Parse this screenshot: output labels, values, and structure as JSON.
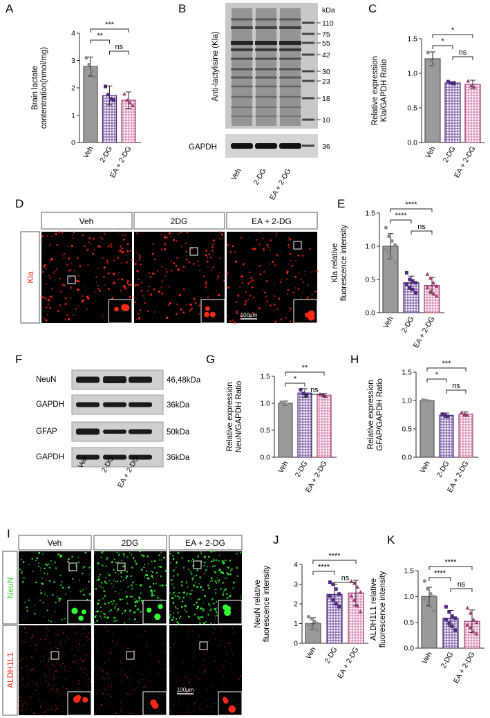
{
  "colors": {
    "veh": "#9a9a9a",
    "dg": "#7b5ea7",
    "ea": "#d88bb0",
    "dg_dark": "#4b2a7b",
    "ea_dark": "#9c3b6e",
    "fluor_red": "#ff2a1a",
    "fluor_green": "#33ff33"
  },
  "panels": {
    "A": {
      "label": "A"
    },
    "B": {
      "label": "B"
    },
    "C": {
      "label": "C"
    },
    "D": {
      "label": "D"
    },
    "E": {
      "label": "E"
    },
    "F": {
      "label": "F"
    },
    "G": {
      "label": "G"
    },
    "H": {
      "label": "H"
    },
    "I": {
      "label": "I"
    },
    "J": {
      "label": "J"
    },
    "K": {
      "label": "K"
    }
  },
  "blot_B": {
    "ylabel": "Anti-lactylisine (Kla)",
    "kda_header": "kDa",
    "markers": [
      "110",
      "75",
      "55",
      "42",
      "30",
      "23",
      "18",
      "10"
    ],
    "gapdh_label": "GAPDH",
    "gapdh_marker": "36",
    "lanes": [
      "Veh",
      "2-DG",
      "EA + 2-DG"
    ]
  },
  "panel_D": {
    "headers": [
      "Veh",
      "2DG",
      "EA + 2-DG"
    ],
    "row_label": "Kla",
    "scale_bar": "100μm"
  },
  "blot_F": {
    "blocks": [
      {
        "name": "NeuN",
        "size": "46,48kDa"
      },
      {
        "name": "GAPDH",
        "size": "36kDa"
      },
      {
        "name": "GFAP",
        "size": "50kDa"
      },
      {
        "name": "GAPDH",
        "size": "36kDa"
      }
    ],
    "lanes": [
      "Veh",
      "2-DG",
      "EA + 2-DG"
    ]
  },
  "panel_I": {
    "headers": [
      "Veh",
      "2DG",
      "EA + 2-DG"
    ],
    "row_labels": [
      "NeuN",
      "ALDH1L1"
    ],
    "scale_bar": "100μm"
  },
  "chart_data": [
    {
      "panel": "A",
      "type": "bar",
      "categories": [
        "Veh",
        "2-DG",
        "EA + 2-DG"
      ],
      "values": [
        2.78,
        1.72,
        1.55
      ],
      "errors": [
        0.35,
        0.35,
        0.3
      ],
      "points": [
        [
          3.1,
          2.85,
          2.6,
          2.4
        ],
        [
          2.05,
          1.75,
          1.6,
          1.55
        ],
        [
          1.78,
          1.55,
          1.45,
          1.35
        ]
      ],
      "ylabel": "Brain lactate contentration(nmol/mg)",
      "ylim": [
        0,
        4
      ],
      "yticks": [
        0,
        1,
        2,
        3,
        4
      ],
      "significance": [
        {
          "a": 0,
          "b": 2,
          "text": "***"
        },
        {
          "a": 0,
          "b": 1,
          "text": "**"
        },
        {
          "a": 1,
          "b": 2,
          "text": "ns"
        }
      ]
    },
    {
      "panel": "C",
      "type": "bar",
      "categories": [
        "Veh",
        "2-DG",
        "EA + 2-DG"
      ],
      "values": [
        1.21,
        0.86,
        0.84
      ],
      "errors": [
        0.1,
        0.02,
        0.06
      ],
      "points": [
        [
          1.3,
          1.18,
          1.13
        ],
        [
          0.88,
          0.86,
          0.85
        ],
        [
          0.89,
          0.82,
          0.8
        ]
      ],
      "ylabel": "Relative expression Kla/GAPDH Ratio",
      "ylim": [
        0,
        1.5
      ],
      "yticks": [
        0.0,
        0.5,
        1.0,
        1.5
      ],
      "significance": [
        {
          "a": 0,
          "b": 2,
          "text": "*"
        },
        {
          "a": 0,
          "b": 1,
          "text": "*"
        },
        {
          "a": 1,
          "b": 2,
          "text": "ns"
        }
      ]
    },
    {
      "panel": "E",
      "type": "bar",
      "categories": [
        "Veh",
        "2-DG",
        "EA + 2-DG"
      ],
      "values": [
        1.0,
        0.45,
        0.41
      ],
      "errors": [
        0.19,
        0.1,
        0.12
      ],
      "points": [
        [
          1.28,
          1.15,
          1.08,
          1.02,
          0.95,
          0.9,
          0.82,
          0.75
        ],
        [
          0.6,
          0.5,
          0.48,
          0.45,
          0.43,
          0.38,
          0.35,
          0.3
        ],
        [
          0.58,
          0.52,
          0.45,
          0.4,
          0.38,
          0.32,
          0.28,
          0.25
        ]
      ],
      "ylabel": "Kla relative fluorescence intensity",
      "ylim": [
        0,
        1.5
      ],
      "yticks": [
        0.0,
        0.5,
        1.0,
        1.5
      ],
      "significance": [
        {
          "a": 0,
          "b": 2,
          "text": "****"
        },
        {
          "a": 0,
          "b": 1,
          "text": "****"
        },
        {
          "a": 1,
          "b": 2,
          "text": "ns"
        }
      ]
    },
    {
      "panel": "G",
      "type": "bar",
      "categories": [
        "Veh",
        "2-DG",
        "EA + 2-DG"
      ],
      "values": [
        1.0,
        1.19,
        1.15
      ],
      "errors": [
        0.04,
        0.08,
        0.03
      ],
      "points": [
        [
          1.02,
          0.99,
          0.98
        ],
        [
          1.25,
          1.18,
          1.15
        ],
        [
          1.17,
          1.15,
          1.13
        ]
      ],
      "ylabel": "Relative expression NeuN/GAPDH Ratio",
      "ylim": [
        0,
        1.5
      ],
      "yticks": [
        0.0,
        0.5,
        1.0,
        1.5
      ],
      "significance": [
        {
          "a": 0,
          "b": 2,
          "text": "**"
        },
        {
          "a": 0,
          "b": 1,
          "text": "*"
        },
        {
          "a": 1,
          "b": 2,
          "text": "ns"
        }
      ]
    },
    {
      "panel": "H",
      "type": "bar",
      "categories": [
        "Veh",
        "2-DG",
        "EA + 2-DG"
      ],
      "values": [
        1.0,
        0.74,
        0.76
      ],
      "errors": [
        0.01,
        0.04,
        0.04
      ],
      "points": [
        [
          1.01,
          1.0,
          0.99
        ],
        [
          0.76,
          0.74,
          0.72
        ],
        [
          0.79,
          0.76,
          0.74
        ]
      ],
      "ylabel": "Relative expression GFAP/GAPDH Ratio",
      "ylim": [
        0,
        1.5
      ],
      "yticks": [
        0.0,
        0.5,
        1.0,
        1.5
      ],
      "significance": [
        {
          "a": 0,
          "b": 2,
          "text": "***"
        },
        {
          "a": 0,
          "b": 1,
          "text": "*"
        },
        {
          "a": 1,
          "b": 2,
          "text": "ns"
        }
      ]
    },
    {
      "panel": "J",
      "type": "bar",
      "categories": [
        "Veh",
        "2-DG",
        "EA + 2-DG"
      ],
      "values": [
        1.0,
        2.48,
        2.55
      ],
      "errors": [
        0.3,
        0.5,
        0.65
      ],
      "points": [
        [
          1.35,
          1.25,
          1.1,
          1.0,
          0.95,
          0.85,
          0.75,
          0.65
        ],
        [
          3.1,
          3.0,
          2.75,
          2.5,
          2.4,
          2.2,
          2.0,
          1.85
        ],
        [
          3.15,
          3.05,
          2.85,
          2.6,
          2.4,
          2.2,
          1.9,
          1.6
        ]
      ],
      "ylabel": "NeuN relative fluorescence intensity",
      "ylim": [
        0,
        4
      ],
      "yticks": [
        0,
        1,
        2,
        3,
        4
      ],
      "significance": [
        {
          "a": 0,
          "b": 2,
          "text": "****"
        },
        {
          "a": 0,
          "b": 1,
          "text": "****"
        },
        {
          "a": 1,
          "b": 2,
          "text": "ns"
        }
      ]
    },
    {
      "panel": "K",
      "type": "bar",
      "categories": [
        "Veh",
        "2-DG",
        "EA + 2-DG"
      ],
      "values": [
        1.0,
        0.58,
        0.52
      ],
      "errors": [
        0.18,
        0.15,
        0.22
      ],
      "points": [
        [
          1.3,
          1.15,
          1.05,
          1.0,
          0.95,
          0.88,
          0.8,
          0.72
        ],
        [
          0.8,
          0.7,
          0.62,
          0.58,
          0.55,
          0.48,
          0.42,
          0.35
        ],
        [
          0.78,
          0.68,
          0.55,
          0.5,
          0.45,
          0.4,
          0.32,
          0.28
        ]
      ],
      "ylabel": "ALDH1L1 relative fluorescence intensity",
      "ylim": [
        0,
        1.5
      ],
      "yticks": [
        0.0,
        0.5,
        1.0,
        1.5
      ],
      "significance": [
        {
          "a": 0,
          "b": 2,
          "text": "****"
        },
        {
          "a": 0,
          "b": 1,
          "text": "****"
        },
        {
          "a": 1,
          "b": 2,
          "text": "ns"
        }
      ]
    }
  ]
}
